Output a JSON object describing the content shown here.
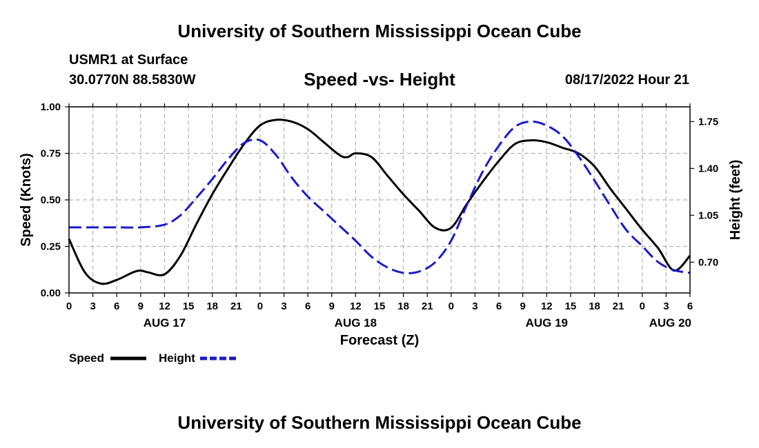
{
  "header": {
    "title": "University of Southern Mississippi Ocean Cube",
    "station": "USMR1 at Surface",
    "coordinates": "30.0770N  88.5830W",
    "chart_title": "Speed -vs- Height",
    "date": "08/17/2022 Hour 21"
  },
  "footer": {
    "title": "University of Southern Mississippi Ocean Cube"
  },
  "colors": {
    "speed": "#000000",
    "height": "#1a1acc",
    "grid": "#b4b4b4"
  },
  "chart_data": {
    "type": "line",
    "title": "Speed -vs- Height",
    "xlabel": "Forecast (Z)",
    "ylabel": "Speed (Knots)",
    "y2label": "Height (feet)",
    "xlim": [
      0,
      78
    ],
    "ylim": [
      0,
      1.0
    ],
    "y2lim": [
      0.47,
      1.86
    ],
    "grid": true,
    "legend_position": "bottom-left",
    "x_ticks": [
      0,
      3,
      6,
      9,
      12,
      15,
      18,
      21,
      24,
      27,
      30,
      33,
      36,
      39,
      42,
      45,
      48,
      51,
      54,
      57,
      60,
      63,
      66,
      69,
      72,
      75,
      78
    ],
    "x_tick_labels": [
      "0",
      "3",
      "6",
      "9",
      "12",
      "15",
      "18",
      "21",
      "0",
      "3",
      "6",
      "9",
      "12",
      "15",
      "18",
      "21",
      "0",
      "3",
      "6",
      "9",
      "12",
      "15",
      "18",
      "21",
      "0",
      "3",
      "6"
    ],
    "date_labels": [
      {
        "x": 12,
        "label": "AUG 17"
      },
      {
        "x": 36,
        "label": "AUG 18"
      },
      {
        "x": 60,
        "label": "AUG 19"
      },
      {
        "x": 78,
        "label": "AUG 20"
      }
    ],
    "y_ticks": [
      0.0,
      0.25,
      0.5,
      0.75,
      1.0
    ],
    "y_tick_labels": [
      "0.00",
      "0.25",
      "0.50",
      "0.75",
      "1.00"
    ],
    "y2_ticks": [
      0.7,
      1.05,
      1.4,
      1.75
    ],
    "y2_tick_labels": [
      "0.70",
      "1.05",
      "1.40",
      "1.75"
    ],
    "series": [
      {
        "name": "Speed",
        "axis": "left",
        "style": "solid",
        "x": [
          0,
          2,
          4,
          6,
          8,
          9,
          10,
          12,
          14,
          16,
          18,
          20,
          22,
          24,
          26,
          28,
          30,
          32,
          34,
          35,
          36,
          38,
          40,
          42,
          44,
          46,
          48,
          50,
          52,
          54,
          56,
          58,
          60,
          62,
          64,
          66,
          68,
          70,
          72,
          74,
          76,
          78
        ],
        "values": [
          0.29,
          0.11,
          0.05,
          0.07,
          0.11,
          0.12,
          0.11,
          0.1,
          0.2,
          0.37,
          0.53,
          0.67,
          0.8,
          0.9,
          0.93,
          0.92,
          0.88,
          0.81,
          0.74,
          0.73,
          0.75,
          0.73,
          0.63,
          0.53,
          0.44,
          0.35,
          0.35,
          0.48,
          0.6,
          0.71,
          0.8,
          0.82,
          0.81,
          0.78,
          0.75,
          0.68,
          0.56,
          0.45,
          0.34,
          0.24,
          0.12,
          0.2
        ]
      },
      {
        "name": "Height",
        "axis": "right",
        "style": "dashed",
        "x": [
          0,
          3,
          6,
          9,
          12,
          14,
          16,
          18,
          20,
          22,
          24,
          26,
          28,
          30,
          32,
          34,
          36,
          38,
          40,
          42,
          44,
          46,
          48,
          50,
          52,
          54,
          56,
          58,
          60,
          62,
          64,
          66,
          68,
          70,
          72,
          74,
          76,
          78
        ],
        "values": [
          0.96,
          0.96,
          0.96,
          0.96,
          0.98,
          1.05,
          1.18,
          1.32,
          1.47,
          1.59,
          1.61,
          1.5,
          1.33,
          1.19,
          1.08,
          0.97,
          0.86,
          0.74,
          0.66,
          0.62,
          0.63,
          0.7,
          0.86,
          1.13,
          1.38,
          1.57,
          1.71,
          1.75,
          1.72,
          1.64,
          1.49,
          1.31,
          1.12,
          0.94,
          0.82,
          0.7,
          0.64,
          0.62
        ]
      }
    ]
  }
}
